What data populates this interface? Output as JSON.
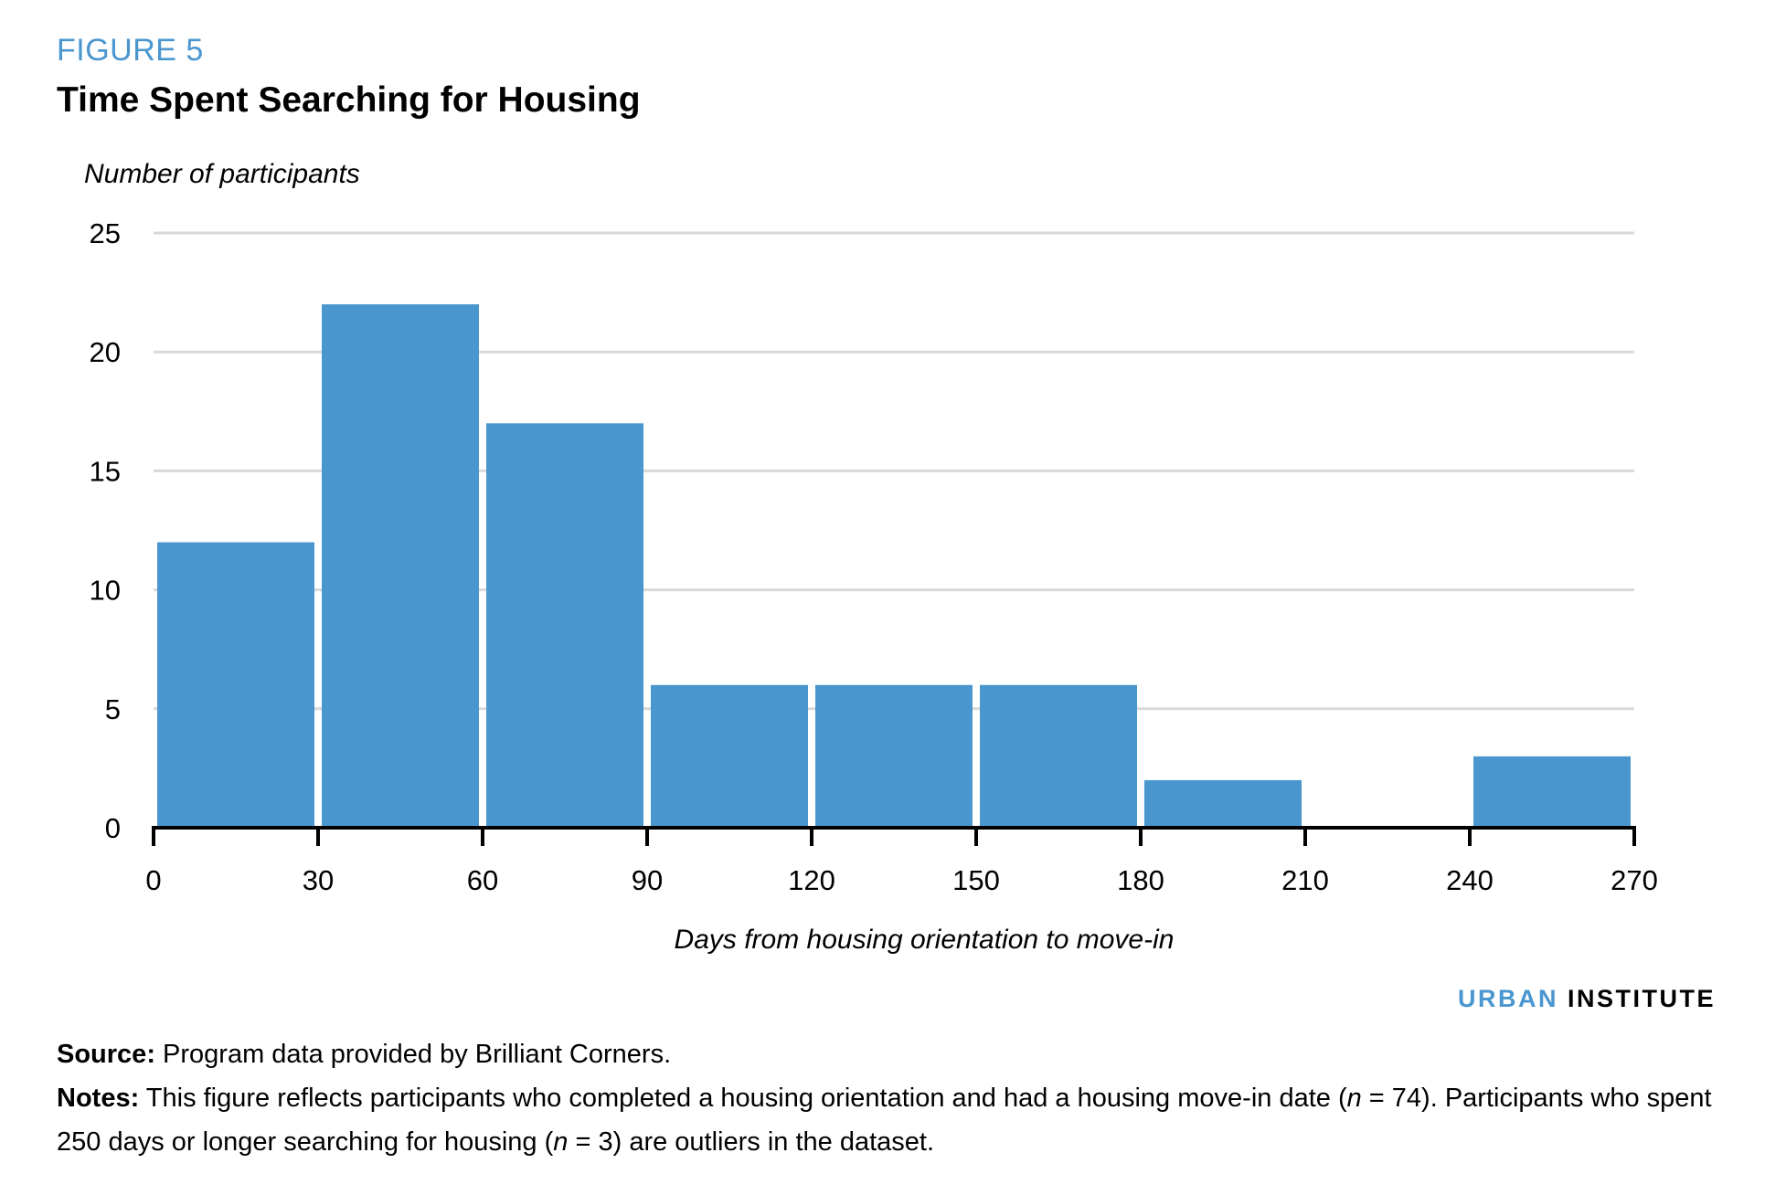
{
  "figure": {
    "label": "FIGURE 5",
    "title": "Time Spent Searching for Housing"
  },
  "brand": {
    "part1": "URBAN",
    "part2": "INSTITUTE"
  },
  "footer": {
    "source_label": "Source:",
    "source_text": "Program data provided by Brilliant Corners.",
    "notes_label": "Notes:",
    "notes_text_1": "This figure reflects participants who completed a housing orientation and had a housing move-in date (",
    "n_italic_1": "n",
    "notes_text_2": " = 74). Participants who spent 250 days or longer searching for housing (",
    "n_italic_2": "n",
    "notes_text_3": " = 3) are outliers in the dataset."
  },
  "colors": {
    "bar": "#4a96cf",
    "grid": "#d9d9d9",
    "axis": "#000000"
  },
  "chart_data": {
    "type": "bar",
    "title": "Time Spent Searching for Housing",
    "xlabel": "Days from housing orientation to move-in",
    "ylabel": "Number of participants",
    "bins": [
      {
        "from": 0,
        "to": 30,
        "value": 12
      },
      {
        "from": 30,
        "to": 60,
        "value": 22
      },
      {
        "from": 60,
        "to": 90,
        "value": 17
      },
      {
        "from": 90,
        "to": 120,
        "value": 6
      },
      {
        "from": 120,
        "to": 150,
        "value": 6
      },
      {
        "from": 150,
        "to": 180,
        "value": 6
      },
      {
        "from": 180,
        "to": 210,
        "value": 2
      },
      {
        "from": 210,
        "to": 240,
        "value": 0
      },
      {
        "from": 240,
        "to": 270,
        "value": 3
      }
    ],
    "xticks": [
      0,
      30,
      60,
      90,
      120,
      150,
      180,
      210,
      240,
      270
    ],
    "yticks": [
      0,
      5,
      10,
      15,
      20,
      25
    ],
    "xlim": [
      0,
      270
    ],
    "ylim": [
      0,
      25
    ],
    "grid": true,
    "legend": "none"
  }
}
